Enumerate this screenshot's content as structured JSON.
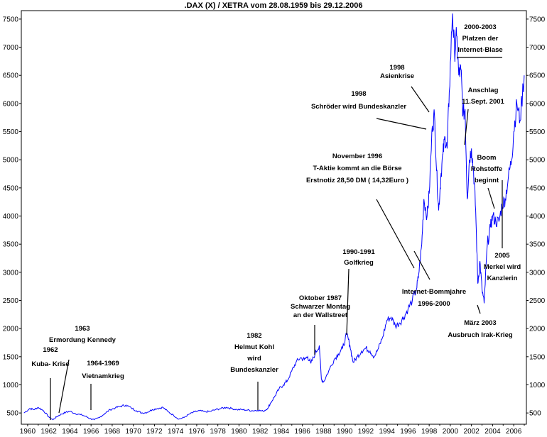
{
  "chart_data": {
    "type": "line",
    "title": ".DAX (X) / XETRA vom 28.08.1959 bis 29.12.2006",
    "xlabel": "",
    "ylabel": "",
    "xlim": [
      1959.4,
      2007.2
    ],
    "ylim": [
      300,
      7650
    ],
    "grid": false,
    "y_ticks": [
      500,
      1000,
      1500,
      2000,
      2500,
      3000,
      3500,
      4000,
      4500,
      5000,
      5500,
      6000,
      6500,
      7000,
      7500
    ],
    "x_ticks": [
      1960,
      1962,
      1964,
      1966,
      1968,
      1970,
      1972,
      1974,
      1976,
      1978,
      1980,
      1982,
      1984,
      1986,
      1988,
      1990,
      1992,
      1994,
      1996,
      1998,
      2000,
      2002,
      2004,
      2006
    ],
    "series": [
      {
        "name": "DAX",
        "color": "#0000ff",
        "x": [
          1959.65,
          1960.2,
          1960.6,
          1961.0,
          1961.5,
          1962.0,
          1962.4,
          1962.8,
          1963.2,
          1963.6,
          1964.0,
          1964.5,
          1965.0,
          1965.5,
          1965.9,
          1966.3,
          1966.8,
          1967.3,
          1967.8,
          1968.3,
          1968.8,
          1969.3,
          1969.8,
          1970.3,
          1970.8,
          1971.3,
          1971.8,
          1972.3,
          1972.8,
          1973.3,
          1973.8,
          1974.3,
          1974.8,
          1975.3,
          1975.8,
          1976.3,
          1976.8,
          1977.3,
          1977.8,
          1978.3,
          1978.8,
          1979.3,
          1979.8,
          1980.3,
          1980.8,
          1981.3,
          1981.8,
          1982.3,
          1982.7,
          1983.0,
          1983.4,
          1983.8,
          1984.2,
          1984.6,
          1985.0,
          1985.4,
          1985.8,
          1986.2,
          1986.5,
          1986.8,
          1987.2,
          1987.6,
          1987.8,
          1988.0,
          1988.5,
          1989.0,
          1989.4,
          1989.8,
          1990.2,
          1990.5,
          1990.8,
          1991.2,
          1991.6,
          1992.0,
          1992.4,
          1992.8,
          1993.2,
          1993.6,
          1994.0,
          1994.4,
          1994.8,
          1995.2,
          1995.6,
          1996.0,
          1996.4,
          1996.8,
          1997.0,
          1997.3,
          1997.5,
          1997.8,
          1998.0,
          1998.3,
          1998.5,
          1998.7,
          1998.9,
          1999.1,
          1999.3,
          1999.5,
          1999.7,
          1999.9,
          2000.2,
          2000.4,
          2000.6,
          2000.8,
          2001.0,
          2001.2,
          2001.4,
          2001.6,
          2001.8,
          2002.0,
          2002.2,
          2002.4,
          2002.6,
          2002.8,
          2003.0,
          2003.2,
          2003.5,
          2003.8,
          2004.0,
          2004.3,
          2004.6,
          2004.9,
          2005.2,
          2005.5,
          2005.8,
          2006.0,
          2006.3,
          2006.6,
          2006.99
        ],
        "values": [
          500,
          580,
          560,
          600,
          540,
          430,
          380,
          440,
          480,
          510,
          530,
          490,
          470,
          440,
          400,
          380,
          420,
          490,
          560,
          590,
          620,
          640,
          590,
          540,
          500,
          510,
          560,
          580,
          600,
          520,
          460,
          390,
          420,
          480,
          520,
          540,
          520,
          530,
          560,
          580,
          600,
          580,
          560,
          560,
          550,
          540,
          550,
          530,
          580,
          680,
          800,
          930,
          1000,
          1080,
          1250,
          1400,
          1480,
          1450,
          1500,
          1380,
          1550,
          1700,
          1100,
          1050,
          1250,
          1450,
          1550,
          1650,
          1900,
          1700,
          1400,
          1500,
          1600,
          1650,
          1600,
          1500,
          1650,
          1850,
          2150,
          2200,
          2050,
          2100,
          2200,
          2350,
          2500,
          2700,
          2950,
          3500,
          4300,
          4000,
          4400,
          5600,
          5800,
          4800,
          4100,
          4700,
          5100,
          5400,
          5200,
          6200,
          7600,
          6900,
          7200,
          6500,
          6600,
          5800,
          5900,
          4300,
          5000,
          5200,
          4800,
          4100,
          2800,
          3200,
          2700,
          2450,
          3500,
          3800,
          4000,
          3900,
          3900,
          4200,
          4300,
          4700,
          5000,
          5500,
          6000,
          5700,
          6500
        ]
      }
    ],
    "annotations": [
      {
        "lines": [
          "1962",
          "Kuba- Krise"
        ]
      },
      {
        "lines": [
          "1963",
          "Ermordung Kennedy"
        ]
      },
      {
        "lines": [
          "1964-1969",
          "Vietnamkrieg"
        ]
      },
      {
        "lines": [
          "1982",
          "Helmut Kohl",
          "wird",
          "Bundeskanzler"
        ]
      },
      {
        "lines": [
          "Oktober 1987",
          "Schwarzer Montag",
          "an der Wallstreet"
        ]
      },
      {
        "lines": [
          "1990-1991",
          "Golfkrieg"
        ]
      },
      {
        "lines": [
          "November 1996",
          "T-Aktie kommt an die Börse",
          "Erstnotiz 28,50 DM ( 14,32Euro )"
        ]
      },
      {
        "lines": [
          "Internet-Bommjahre",
          "1996-2000"
        ]
      },
      {
        "lines": [
          "1998",
          "Asienkrise"
        ]
      },
      {
        "lines": [
          "1998",
          "Schröder wird Bundeskanzler"
        ]
      },
      {
        "lines": [
          "2000-2003",
          "Platzen der",
          "Internet-Blase"
        ]
      },
      {
        "lines": [
          "Anschlag",
          "11.Sept. 2001"
        ]
      },
      {
        "lines": [
          "Boom",
          "Rohstoffe",
          "beginnt"
        ]
      },
      {
        "lines": [
          "2005",
          "Merkel wird",
          "Kanzlerin"
        ]
      },
      {
        "lines": [
          "März 2003",
          "Ausbruch Irak-Krieg"
        ]
      }
    ]
  }
}
